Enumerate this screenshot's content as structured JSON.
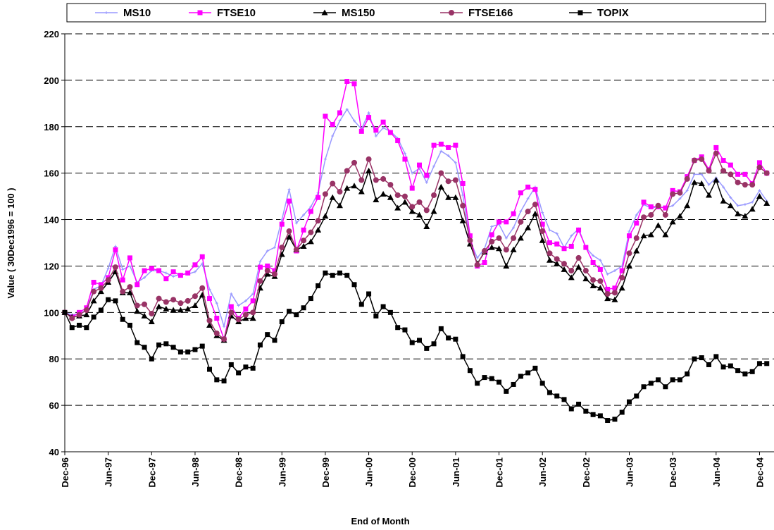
{
  "chart_data": {
    "type": "line",
    "x_label": "End of Month",
    "y_label": "Value ( 30Dec1996 = 100 )",
    "categories": [
      "Dec-96",
      null,
      null,
      null,
      null,
      null,
      "Jun-97",
      null,
      null,
      null,
      null,
      null,
      "Dec-97",
      null,
      null,
      null,
      null,
      null,
      "Jun-98",
      null,
      null,
      null,
      null,
      null,
      "Dec-98",
      null,
      null,
      null,
      null,
      null,
      "Jun-99",
      null,
      null,
      null,
      null,
      null,
      "Dec-99",
      null,
      null,
      null,
      null,
      null,
      "Jun-00",
      null,
      null,
      null,
      null,
      null,
      "Dec-00",
      null,
      null,
      null,
      null,
      null,
      "Jun-01",
      null,
      null,
      null,
      null,
      null,
      "Dec-01",
      null,
      null,
      null,
      null,
      null,
      "Jun-02",
      null,
      null,
      null,
      null,
      null,
      "Dec-02",
      null,
      null,
      null,
      null,
      null,
      "Jun-03",
      null,
      null,
      null,
      null,
      null,
      "Dec-03",
      null,
      null,
      null,
      null,
      null,
      "Jun-04",
      null,
      null,
      null,
      null,
      null,
      "Dec-04",
      null
    ],
    "ylim": [
      40,
      220
    ],
    "yticks": [
      40,
      60,
      80,
      100,
      120,
      140,
      160,
      180,
      200,
      220
    ],
    "grid": true,
    "legend": "top",
    "series": [
      {
        "name": "MS10",
        "color": "#9999ff",
        "marker": "plus",
        "values": [
          100,
          99,
          99.5,
          101,
          110,
          111.5,
          119,
          128.5,
          118.5,
          120,
          113,
          115,
          118,
          118,
          117,
          115.5,
          116.5,
          116.5,
          117.5,
          121,
          110,
          104,
          94,
          108,
          103,
          105,
          108,
          122,
          126.5,
          128,
          140,
          153,
          138.5,
          142,
          145.5,
          151.5,
          166,
          176,
          182.5,
          187.5,
          182.5,
          179,
          186,
          176,
          179.5,
          178,
          175,
          168.5,
          160,
          162,
          156,
          163,
          169.5,
          167.5,
          164.5,
          150.5,
          131,
          123.5,
          127.5,
          137,
          138,
          132,
          136.5,
          143.5,
          149,
          154,
          143,
          135.5,
          134,
          128,
          133,
          136,
          128,
          124.5,
          122.5,
          116.5,
          118,
          120,
          135,
          142,
          146.5,
          145,
          145.5,
          145,
          146,
          149,
          152.5,
          159.5,
          159.5,
          155,
          158,
          154,
          149.5,
          146,
          146.5,
          147.5,
          152.5,
          148
        ]
      },
      {
        "name": "FTSE10",
        "color": "#ff00ff",
        "marker": "square",
        "values": [
          100,
          98,
          100,
          102,
          113,
          112,
          115,
          127,
          114,
          123.5,
          112,
          118,
          119,
          118,
          114.5,
          117.5,
          116,
          117,
          120.5,
          124,
          106,
          97.5,
          88.5,
          102.5,
          97.5,
          101.5,
          105,
          119.5,
          120,
          118,
          138,
          148,
          126.5,
          135.5,
          143.5,
          149.5,
          184.5,
          181,
          186,
          199.5,
          198.5,
          178,
          184,
          178.5,
          182,
          177.5,
          174,
          166,
          153.5,
          163.5,
          159,
          172,
          172.5,
          171,
          172,
          155.5,
          133,
          120,
          121.5,
          133.5,
          139,
          139,
          142.5,
          151.5,
          154,
          153,
          138,
          130,
          129.5,
          127.5,
          128.5,
          135.5,
          128,
          121.5,
          118.5,
          110,
          110.5,
          118,
          133,
          138.5,
          147.5,
          145.5,
          145.5,
          145,
          152.5,
          152,
          158.5,
          165.5,
          167,
          161.5,
          171,
          165.5,
          163.5,
          159.5,
          159.5,
          155.5,
          164.5,
          160
        ]
      },
      {
        "name": "MS150",
        "color": "#000000",
        "marker": "triangle",
        "values": [
          100,
          98,
          98.5,
          99,
          105,
          109,
          113,
          117.5,
          108.5,
          108.5,
          100.5,
          98.5,
          96,
          102.5,
          101.5,
          101,
          101,
          101.5,
          103,
          107.5,
          94.5,
          90,
          88,
          98.5,
          96,
          97.5,
          97.5,
          110.5,
          116.5,
          115.5,
          125,
          132.5,
          127,
          128.5,
          130.5,
          135.5,
          141.5,
          149.5,
          146,
          153.5,
          154.5,
          152,
          161,
          148.5,
          151,
          149.5,
          145,
          147.5,
          143.5,
          142,
          137,
          143.5,
          154,
          149.5,
          149.5,
          139.5,
          129.5,
          121,
          126,
          128,
          127.5,
          120,
          127,
          132,
          136.5,
          142.5,
          131,
          122.5,
          121,
          118.5,
          115,
          119.5,
          114.5,
          111.5,
          110.5,
          106,
          105.5,
          110.5,
          120,
          126.5,
          133,
          133.5,
          137.5,
          133.5,
          139,
          141.5,
          146,
          156,
          155.5,
          150.5,
          157,
          148,
          146,
          142.5,
          141.5,
          144.5,
          150,
          147
        ]
      },
      {
        "name": "FTSE166",
        "color": "#993366",
        "marker": "circle",
        "values": [
          100,
          97.5,
          99,
          101,
          109,
          110.5,
          114,
          119.5,
          109,
          111,
          103,
          103.5,
          99.5,
          106,
          104.5,
          105.5,
          104,
          105,
          107,
          110.5,
          96.5,
          91,
          88.5,
          100,
          97,
          99,
          100,
          113.5,
          118,
          116.5,
          128,
          135,
          127,
          131,
          134.5,
          139.5,
          151,
          155.5,
          152,
          161,
          164.5,
          157,
          166,
          157,
          157.5,
          155,
          150.5,
          150,
          145.5,
          147.5,
          144,
          150.5,
          160,
          156.5,
          157,
          146,
          131,
          120.5,
          126.5,
          130.5,
          132,
          127,
          132,
          139,
          143.5,
          146.5,
          135,
          125.5,
          123,
          121,
          118,
          123.5,
          118,
          114,
          113.5,
          108,
          108.5,
          115,
          125.5,
          132,
          141,
          142,
          146,
          142,
          151,
          151.5,
          157.5,
          165.5,
          166,
          161,
          168.5,
          161,
          159.5,
          156,
          155,
          155,
          162.5,
          160
        ]
      },
      {
        "name": "TOPIX",
        "color": "#000000",
        "marker": "square",
        "values": [
          100,
          93.5,
          94.5,
          93.5,
          98,
          101,
          105.5,
          105,
          97,
          94.5,
          87,
          85,
          80,
          86,
          86.5,
          85,
          83,
          83,
          84,
          85.5,
          75.5,
          71,
          70.5,
          77.5,
          74,
          76.5,
          76,
          86,
          90.5,
          88,
          96,
          100.5,
          99,
          102,
          106,
          111.5,
          117,
          116,
          117,
          116,
          112,
          103.5,
          108,
          98.5,
          102.5,
          100,
          93.5,
          92.5,
          87,
          88,
          84.5,
          86.5,
          93,
          89,
          88.5,
          81,
          75,
          69.5,
          72,
          71.5,
          70,
          66,
          69,
          72.5,
          74,
          76,
          69.5,
          65.5,
          64,
          62.5,
          58.5,
          60.5,
          57.5,
          56,
          55.5,
          53.5,
          54,
          57,
          61.5,
          64,
          68,
          69.5,
          71,
          68,
          71,
          71,
          73.5,
          80,
          80.5,
          77.5,
          81,
          76.5,
          77,
          75,
          73.5,
          74.5,
          78,
          78
        ]
      }
    ]
  }
}
